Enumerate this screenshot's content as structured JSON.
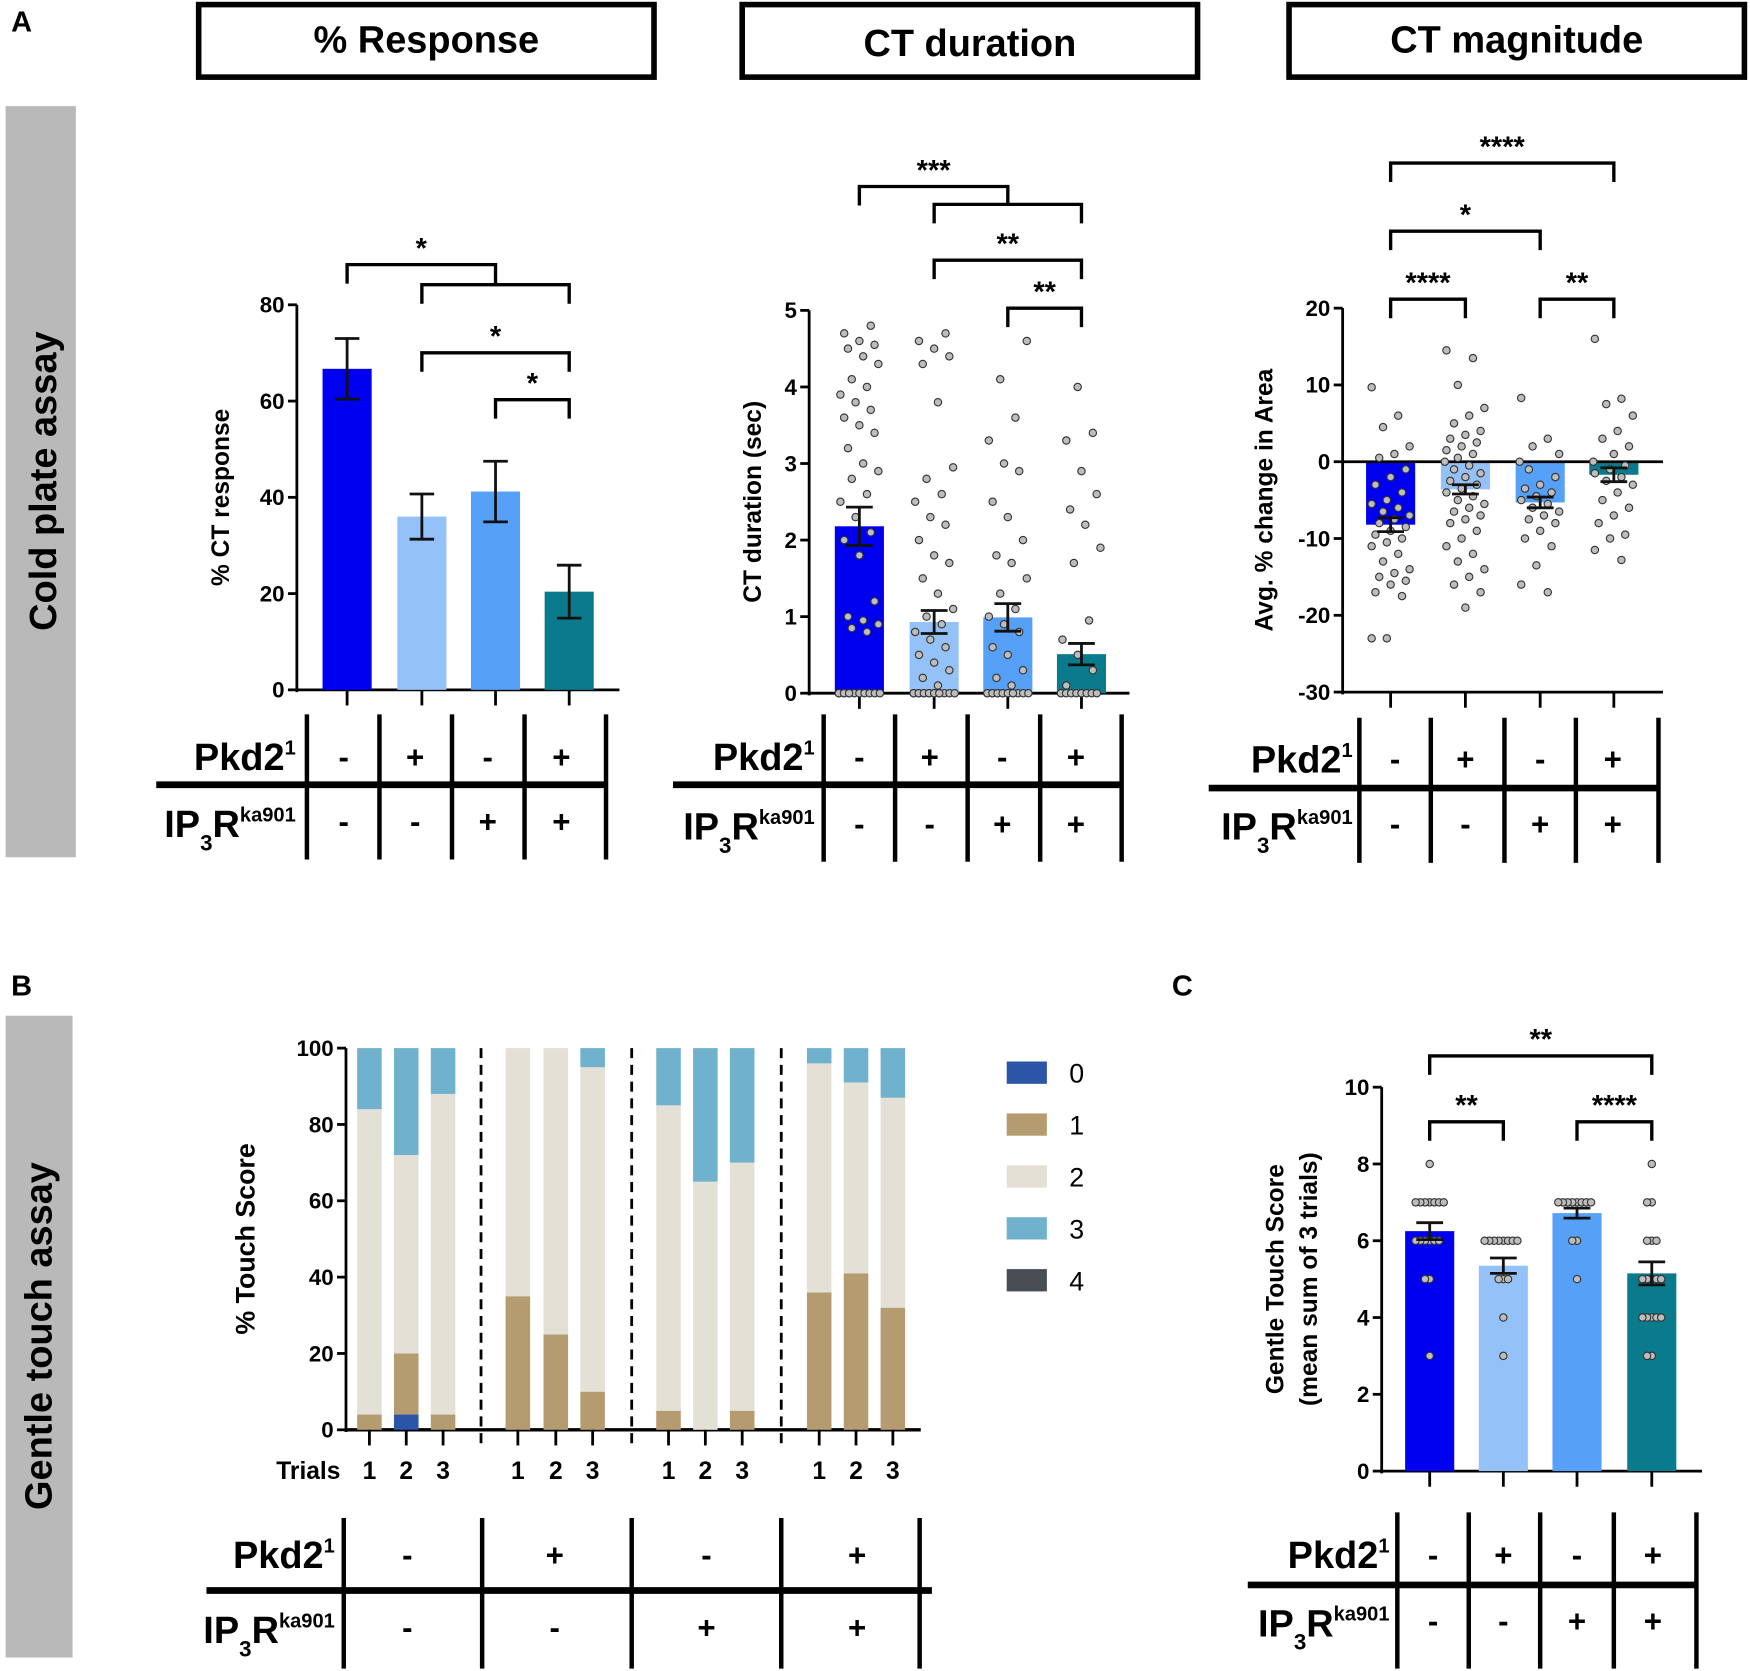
{
  "panel_letters": {
    "a": "A",
    "b": "B",
    "c": "C"
  },
  "headers": [
    "% Response",
    "CT duration",
    "CT magnitude"
  ],
  "row_labels": {
    "cold": "Cold plate assay",
    "touch": "Gentle touch assay"
  },
  "genotype": {
    "pkd2_label": "Pkd2",
    "pkd2_sup": "1",
    "ip3r_label": "IP",
    "ip3r_sub": "3",
    "ip3r_r": "R",
    "ip3r_sup": "ka901",
    "pkd2": [
      "-",
      "+",
      "-",
      "+"
    ],
    "ip3r": [
      "-",
      "-",
      "+",
      "+"
    ]
  },
  "colors": {
    "g1": "#0000f0",
    "g2": "#94c2f8",
    "g3": "#56a0f8",
    "g4": "#0a7b8c",
    "point_fill": "#bdbdbd",
    "row_label_bg": "#b9b9b9"
  },
  "chart_data": [
    {
      "type": "bar",
      "title": "% Response",
      "ylabel": "% CT response",
      "xlabel": "",
      "ylim": [
        0,
        80
      ],
      "yticks": [
        "0",
        "20",
        "40",
        "60",
        "80"
      ],
      "tick_values": [
        0,
        20,
        40,
        60,
        80
      ],
      "categories": [
        "Pkd2- IP3R-",
        "Pkd2+ IP3R-",
        "Pkd2- IP3R+",
        "Pkd2+ IP3R+"
      ],
      "values": [
        66.7,
        36.0,
        41.2,
        20.4
      ],
      "errors": [
        6.3,
        4.7,
        6.3,
        5.5
      ],
      "annotations": [
        "*",
        "*",
        "*"
      ]
    },
    {
      "type": "bar",
      "title": "CT duration",
      "ylabel": "CT duration (sec)",
      "xlabel": "",
      "ylim": [
        0,
        5
      ],
      "yticks": [
        "0",
        "1",
        "2",
        "3",
        "4",
        "5"
      ],
      "tick_values": [
        0,
        1,
        2,
        3,
        4,
        5
      ],
      "categories": [
        "Pkd2- IP3R-",
        "Pkd2+ IP3R-",
        "Pkd2- IP3R+",
        "Pkd2+ IP3R+"
      ],
      "values": [
        2.18,
        0.93,
        0.99,
        0.51
      ],
      "errors": [
        0.25,
        0.15,
        0.18,
        0.14
      ],
      "points": [
        [
          0,
          0,
          0,
          0,
          0,
          0,
          0,
          0,
          0,
          0,
          0,
          0,
          0.8,
          0.85,
          0.9,
          0.95,
          1.0,
          1.2,
          1.8,
          2.0,
          2.1,
          2.3,
          2.5,
          2.6,
          2.8,
          2.9,
          3.0,
          3.2,
          3.4,
          3.5,
          3.6,
          3.7,
          3.8,
          3.9,
          4.0,
          4.1,
          4.3,
          4.4,
          4.5,
          4.55,
          4.6,
          4.7,
          4.8
        ],
        [
          0,
          0,
          0,
          0,
          0,
          0,
          0,
          0,
          0,
          0,
          0,
          0,
          0,
          0,
          0,
          0.1,
          0.2,
          0.3,
          0.4,
          0.5,
          0.6,
          0.7,
          0.8,
          0.9,
          1.0,
          1.1,
          1.3,
          1.5,
          1.7,
          1.8,
          2.0,
          2.2,
          2.3,
          2.5,
          2.6,
          2.8,
          2.95,
          3.8,
          4.3,
          4.4,
          4.5,
          4.6,
          4.7
        ],
        [
          0,
          0,
          0,
          0,
          0,
          0,
          0,
          0,
          0,
          0,
          0,
          0,
          0,
          0,
          0,
          0.1,
          0.2,
          0.3,
          0.5,
          0.6,
          0.8,
          0.9,
          1.0,
          1.1,
          1.3,
          1.5,
          1.7,
          1.8,
          2.0,
          2.3,
          2.5,
          2.9,
          3.0,
          3.3,
          3.6,
          4.1,
          4.6
        ],
        [
          0,
          0,
          0,
          0,
          0,
          0,
          0,
          0,
          0.1,
          0.3,
          0.5,
          0.7,
          0.95,
          1.7,
          1.9,
          2.2,
          2.4,
          2.6,
          2.9,
          3.3,
          3.4,
          4.0
        ]
      ],
      "annotations": [
        "***",
        "**",
        "**"
      ]
    },
    {
      "type": "bar",
      "title": "CT magnitude",
      "ylabel": "Avg. % change in Area",
      "xlabel": "",
      "ylim": [
        -30,
        20
      ],
      "yticks": [
        "-30",
        "-20",
        "-10",
        "0",
        "10",
        "20"
      ],
      "tick_values": [
        -30,
        -20,
        -10,
        0,
        10,
        20
      ],
      "categories": [
        "Pkd2- IP3R-",
        "Pkd2+ IP3R-",
        "Pkd2- IP3R+",
        "Pkd2+ IP3R+"
      ],
      "values": [
        -8.2,
        -3.6,
        -5.3,
        -1.7
      ],
      "errors": [
        0.9,
        0.6,
        0.7,
        0.9
      ],
      "points": [
        [
          9.7,
          6,
          4.5,
          2,
          1,
          0.5,
          -1,
          -2,
          -3,
          -4,
          -5,
          -5.5,
          -6,
          -6.5,
          -7,
          -7.5,
          -8,
          -8.5,
          -9,
          -9.5,
          -10,
          -10.5,
          -11,
          -12,
          -13,
          -14,
          -14.5,
          -15,
          -15.5,
          -16,
          -17,
          -17.5,
          -23,
          -23
        ],
        [
          14.5,
          13.5,
          10,
          7,
          6,
          5,
          4,
          3.5,
          3,
          2.5,
          2,
          1.5,
          1,
          0.5,
          0,
          -0.5,
          -1,
          -1.5,
          -2,
          -2.5,
          -3,
          -3.5,
          -4,
          -4.5,
          -5,
          -5.5,
          -6,
          -6.5,
          -7,
          -7.5,
          -8,
          -9,
          -10,
          -11,
          -12,
          -13,
          -14,
          -15,
          -16,
          -17,
          -19
        ],
        [
          8.3,
          3,
          2,
          1,
          0,
          -1,
          -2,
          -3,
          -3.5,
          -4,
          -4.5,
          -5,
          -5.5,
          -6,
          -6.5,
          -7,
          -7.5,
          -8,
          -9,
          -10,
          -11,
          -13.5,
          -16,
          -17
        ],
        [
          16,
          8.2,
          7.5,
          6,
          4,
          3,
          2,
          1,
          0,
          -0.5,
          -1,
          -1.5,
          -2,
          -2.5,
          -3,
          -4,
          -5,
          -6,
          -7,
          -8,
          -9.5,
          -10,
          -11.5,
          -12.8
        ]
      ],
      "annotations": [
        "****",
        "*",
        "****",
        "**"
      ]
    },
    {
      "type": "bar",
      "stacked": true,
      "ylabel": "% Touch Score",
      "xlabel": "Trials",
      "ylim": [
        0,
        100
      ],
      "yticks": [
        "0",
        "20",
        "40",
        "60",
        "80",
        "100"
      ],
      "tick_values": [
        0,
        20,
        40,
        60,
        80,
        100
      ],
      "trial_labels": [
        "1",
        "2",
        "3"
      ],
      "legend": {
        "position": "right",
        "labels": [
          "0",
          "1",
          "2",
          "3",
          "4"
        ],
        "colors": [
          "#2b55a6",
          "#b59c70",
          "#e3e0d6",
          "#70b2cd",
          "#4a4e54"
        ]
      },
      "groups": [
        [
          [
            0,
            4,
            80,
            16,
            0
          ],
          [
            4,
            16,
            52,
            28,
            0
          ],
          [
            0,
            4,
            84,
            12,
            0
          ]
        ],
        [
          [
            0,
            35,
            65,
            0,
            0
          ],
          [
            0,
            25,
            75,
            0,
            0
          ],
          [
            0,
            10,
            85,
            5,
            0
          ]
        ],
        [
          [
            0,
            5,
            80,
            15,
            0
          ],
          [
            0,
            0,
            65,
            35,
            0
          ],
          [
            0,
            5,
            65,
            30,
            0
          ]
        ],
        [
          [
            0,
            36,
            60,
            4,
            0
          ],
          [
            0,
            41,
            50,
            9,
            0
          ],
          [
            0,
            32,
            55,
            13,
            0
          ]
        ]
      ]
    },
    {
      "type": "bar",
      "ylabel": "Gentle Touch Score",
      "ylabel2": "(mean sum of 3 trials)",
      "xlabel": "",
      "ylim": [
        0,
        10
      ],
      "yticks": [
        "0",
        "2",
        "4",
        "6",
        "8",
        "10"
      ],
      "tick_values": [
        0,
        2,
        4,
        6,
        8,
        10
      ],
      "categories": [
        "Pkd2- IP3R-",
        "Pkd2+ IP3R-",
        "Pkd2- IP3R+",
        "Pkd2+ IP3R+"
      ],
      "values": [
        6.25,
        5.35,
        6.72,
        5.15
      ],
      "errors": [
        0.22,
        0.2,
        0.13,
        0.3
      ],
      "points": [
        [
          8,
          7,
          7,
          7,
          7,
          7,
          7,
          7,
          6,
          6,
          6,
          6,
          6,
          6,
          5,
          5,
          3
        ],
        [
          6,
          6,
          6,
          6,
          6,
          6,
          6,
          6,
          5,
          5,
          5,
          4,
          3
        ],
        [
          7,
          7,
          7,
          7,
          7,
          7,
          7,
          7,
          6,
          6,
          5
        ],
        [
          8,
          7,
          7,
          6,
          6,
          6,
          5,
          5,
          5,
          5,
          5,
          4,
          4,
          4,
          4,
          4,
          3,
          3
        ]
      ],
      "annotations": [
        "**",
        "**",
        "****"
      ]
    }
  ]
}
